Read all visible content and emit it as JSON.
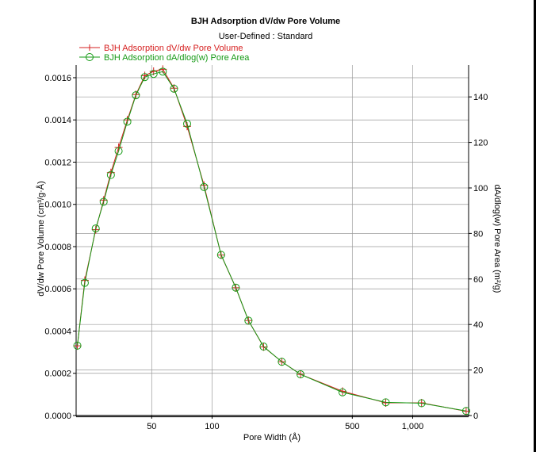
{
  "chart_data": {
    "type": "line",
    "title": "BJH Adsorption dV/dw Pore Volume",
    "subtitle": "User-Defined : Standard",
    "xlabel": "Pore Width (Å)",
    "ylabel_left": "dV/dw Pore Volume (cm³/g·Å)",
    "ylabel_right": "dA/dlog(w) Pore Area (m²/g)",
    "x_scale": "log",
    "xlim": [
      21,
      1900
    ],
    "ylim_left": [
      0,
      0.00166
    ],
    "ylim_right": [
      0,
      154
    ],
    "x_ticks": [
      50,
      100,
      500,
      1000
    ],
    "x_tick_labels": [
      "50",
      "100",
      "500",
      "1,000"
    ],
    "y_left_ticks": [
      0,
      0.0002,
      0.0004,
      0.0006,
      0.0008,
      0.001,
      0.0012,
      0.0014,
      0.0016
    ],
    "y_left_tick_labels": [
      "0.0000",
      "0.0002",
      "0.0004",
      "0.0006",
      "0.0008",
      "0.0010",
      "0.0012",
      "0.0014",
      "0.0016"
    ],
    "y_right_ticks": [
      0,
      20,
      40,
      60,
      80,
      100,
      120,
      140
    ],
    "y_right_tick_labels": [
      "0",
      "20",
      "40",
      "60",
      "80",
      "100",
      "120",
      "140"
    ],
    "grid": true,
    "legend_position": "top-left",
    "series": [
      {
        "name": "BJH Adsorption dV/dw Pore Volume",
        "axis": "left",
        "marker": "plus",
        "color": "#d62020",
        "x": [
          21.3,
          23.2,
          26.3,
          28.8,
          31.3,
          34.2,
          37.8,
          41.7,
          46.2,
          51.1,
          56.8,
          64.6,
          75.1,
          91.2,
          110.9,
          131.3,
          151.8,
          180.6,
          222.6,
          275.9,
          446.8,
          734,
          1107.3,
          1847.3
        ],
        "y": [
          0.00033,
          0.00064,
          0.00088,
          0.00102,
          0.00115,
          0.00127,
          0.0014,
          0.00152,
          0.00161,
          0.00163,
          0.00164,
          0.00155,
          0.00137,
          0.00109,
          0.00076,
          0.000605,
          0.00045,
          0.000325,
          0.000255,
          0.000195,
          0.000115,
          6e-05,
          6e-05,
          2e-05
        ]
      },
      {
        "name": "BJH Adsorption dA/dlog(w) Pore Area",
        "axis": "right",
        "marker": "circle",
        "color": "#159a15",
        "x": [
          21.3,
          23.2,
          26.3,
          28.8,
          31.3,
          34.2,
          37.8,
          41.7,
          46.2,
          51.1,
          56.8,
          64.6,
          75.1,
          91.2,
          110.9,
          131.3,
          151.8,
          180.6,
          222.6,
          275.9,
          446.8,
          734,
          1107.3,
          1847.3
        ],
        "y": [
          30.7,
          58.3,
          82.2,
          93.9,
          105.7,
          116.2,
          129.1,
          140.7,
          148.7,
          150.1,
          151.1,
          143.6,
          128.2,
          100.4,
          70.6,
          56.2,
          41.7,
          30.3,
          23.6,
          18.1,
          10.2,
          5.8,
          5.4,
          2.0
        ]
      }
    ]
  }
}
